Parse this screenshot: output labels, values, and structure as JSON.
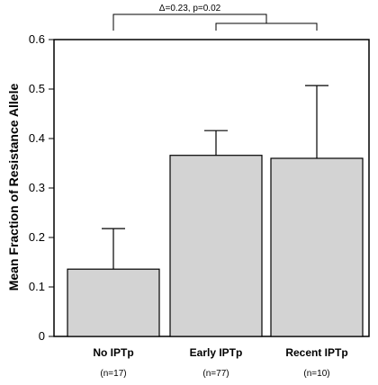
{
  "chart_data": {
    "type": "bar",
    "title": "",
    "xlabel": "",
    "ylabel": "Mean  Fraction of  Resistance Allele",
    "ylim": [
      0,
      0.6
    ],
    "yticks": [
      "0",
      "0.1",
      "0.2",
      "0.3",
      "0.4",
      "0.5",
      "0.6"
    ],
    "categories": [
      "No IPTp",
      "Early IPTp",
      "Recent IPTp"
    ],
    "sample_sizes": [
      "(n=17)",
      "(n=77)",
      "(n=10)"
    ],
    "values": [
      0.136,
      0.366,
      0.36
    ],
    "error_upper": [
      0.218,
      0.416,
      0.507
    ],
    "bar_color": "#d3d3d3",
    "grid": false,
    "annotation": "Δ=0.23, p=0.02"
  }
}
